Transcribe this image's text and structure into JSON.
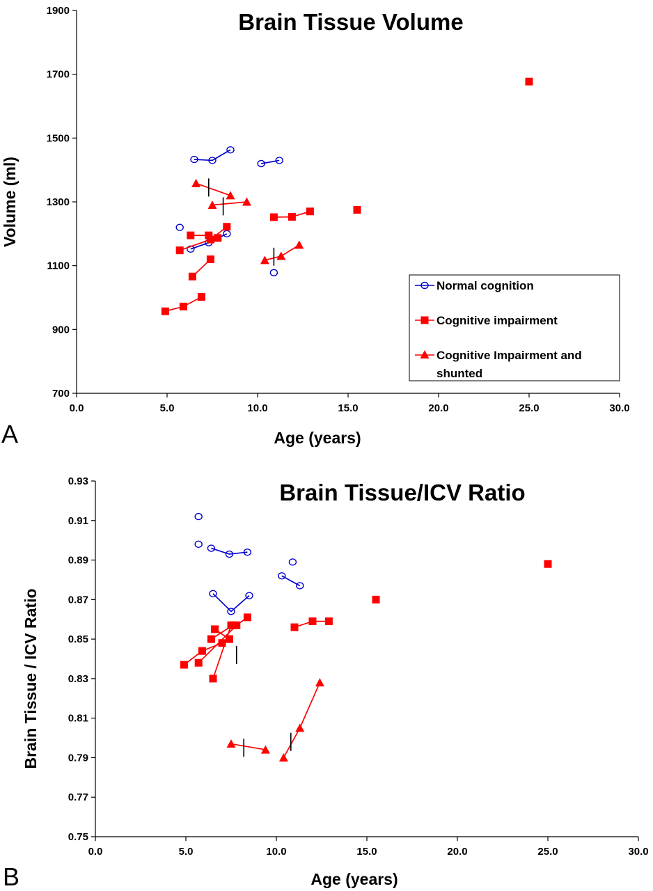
{
  "colors": {
    "normal": "#0000cc",
    "impaired": "#ff0000",
    "marker_impaired": "#ff0000"
  },
  "legend": {
    "items": [
      {
        "label": "Normal cognition",
        "marker": "circle-open",
        "color": "#0000cc"
      },
      {
        "label": "Cognitive impairment",
        "marker": "square",
        "color": "#ff0000"
      },
      {
        "label": "Cognitive Impairment and",
        "label2": "shunted",
        "marker": "triangle",
        "color": "#ff0000"
      }
    ],
    "placement": "lower-right of panel A"
  },
  "chart_data": [
    {
      "panel": "A",
      "type": "scatter",
      "title": "Brain Tissue Volume",
      "xlabel": "Age (years)",
      "ylabel": "Volume (ml)",
      "xlim": [
        0,
        30
      ],
      "ylim": [
        700,
        1900
      ],
      "xticks": [
        "0.0",
        "5.0",
        "10.0",
        "15.0",
        "20.0",
        "25.0",
        "30.0"
      ],
      "yticks": [
        "700",
        "900",
        "1100",
        "1300",
        "1500",
        "1700",
        "1900"
      ],
      "series": [
        {
          "name": "Normal cognition",
          "marker": "circle-open",
          "color": "#0000cc",
          "subjects": [
            [
              [
                6.5,
                1433
              ],
              [
                7.5,
                1430
              ],
              [
                8.5,
                1463
              ]
            ],
            [
              [
                10.2,
                1420
              ],
              [
                11.2,
                1430
              ]
            ],
            [
              [
                5.7,
                1220
              ]
            ],
            [
              [
                6.3,
                1152
              ],
              [
                7.3,
                1172
              ],
              [
                8.3,
                1200
              ]
            ],
            [
              [
                10.9,
                1078
              ]
            ]
          ]
        },
        {
          "name": "Cognitive impairment",
          "marker": "square",
          "color": "#ff0000",
          "subjects": [
            [
              [
                10.9,
                1252
              ],
              [
                11.9,
                1253
              ],
              [
                12.9,
                1270
              ]
            ],
            [
              [
                15.5,
                1275
              ]
            ],
            [
              [
                25.0,
                1677
              ]
            ],
            [
              [
                6.3,
                1195
              ],
              [
                7.3,
                1195
              ],
              [
                7.8,
                1187
              ]
            ],
            [
              [
                5.7,
                1148
              ],
              [
                7.4,
                1182
              ],
              [
                8.3,
                1222
              ]
            ],
            [
              [
                6.4,
                1066
              ],
              [
                7.4,
                1120
              ]
            ],
            [
              [
                4.9,
                957
              ],
              [
                5.9,
                972
              ],
              [
                6.9,
                1002
              ]
            ]
          ]
        },
        {
          "name": "Cognitive Impairment and shunted",
          "marker": "triangle",
          "color": "#ff0000",
          "subjects": [
            [
              [
                6.6,
                1358
              ],
              [
                8.5,
                1320
              ]
            ],
            [
              [
                7.5,
                1290
              ],
              [
                9.4,
                1300
              ]
            ],
            [
              [
                10.4,
                1117
              ],
              [
                11.3,
                1130
              ],
              [
                12.3,
                1165
              ]
            ]
          ],
          "shunt_marks": [
            [
              7.3,
              1345
            ],
            [
              8.1,
              1286
            ],
            [
              10.9,
              1128
            ]
          ]
        }
      ]
    },
    {
      "panel": "B",
      "type": "scatter",
      "title": "Brain Tissue/ICV Ratio",
      "xlabel": "Age (years)",
      "ylabel": "Brain Tissue / ICV Ratio",
      "xlim": [
        0,
        30
      ],
      "ylim": [
        0.75,
        0.93
      ],
      "xticks": [
        "0.0",
        "5.0",
        "10.0",
        "15.0",
        "20.0",
        "25.0",
        "30.0"
      ],
      "yticks": [
        "0.75",
        "0.77",
        "0.79",
        "0.81",
        "0.83",
        "0.85",
        "0.87",
        "0.89",
        "0.91",
        "0.93"
      ],
      "series": [
        {
          "name": "Normal cognition",
          "marker": "circle-open",
          "color": "#0000cc",
          "subjects": [
            [
              [
                5.7,
                0.912
              ]
            ],
            [
              [
                5.7,
                0.898
              ]
            ],
            [
              [
                6.4,
                0.896
              ],
              [
                7.4,
                0.893
              ],
              [
                8.4,
                0.894
              ]
            ],
            [
              [
                10.9,
                0.889
              ]
            ],
            [
              [
                10.3,
                0.882
              ],
              [
                11.3,
                0.877
              ]
            ],
            [
              [
                6.5,
                0.873
              ],
              [
                7.5,
                0.864
              ],
              [
                8.5,
                0.872
              ]
            ]
          ]
        },
        {
          "name": "Cognitive impairment",
          "marker": "square",
          "color": "#ff0000",
          "subjects": [
            [
              [
                25.0,
                0.888
              ]
            ],
            [
              [
                15.5,
                0.87
              ]
            ],
            [
              [
                11.0,
                0.856
              ],
              [
                12.0,
                0.859
              ],
              [
                12.9,
                0.859
              ]
            ],
            [
              [
                6.4,
                0.85
              ],
              [
                7.6,
                0.857
              ]
            ],
            [
              [
                6.6,
                0.855
              ],
              [
                7.4,
                0.85
              ]
            ],
            [
              [
                4.9,
                0.837
              ],
              [
                5.9,
                0.844
              ],
              [
                7.0,
                0.848
              ]
            ],
            [
              [
                5.7,
                0.838
              ],
              [
                7.8,
                0.857
              ],
              [
                8.4,
                0.861
              ]
            ],
            [
              [
                6.5,
                0.83
              ],
              [
                7.5,
                0.857
              ]
            ]
          ]
        },
        {
          "name": "Cognitive Impairment and shunted",
          "marker": "triangle",
          "color": "#ff0000",
          "subjects": [
            [
              [
                7.5,
                0.797
              ],
              [
                9.4,
                0.794
              ]
            ],
            [
              [
                10.4,
                0.79
              ],
              [
                11.3,
                0.805
              ],
              [
                12.4,
                0.828
              ]
            ]
          ],
          "shunt_marks": [
            [
              7.8,
              0.842
            ],
            [
              8.2,
              0.795
            ],
            [
              10.8,
              0.798
            ]
          ]
        }
      ]
    }
  ]
}
